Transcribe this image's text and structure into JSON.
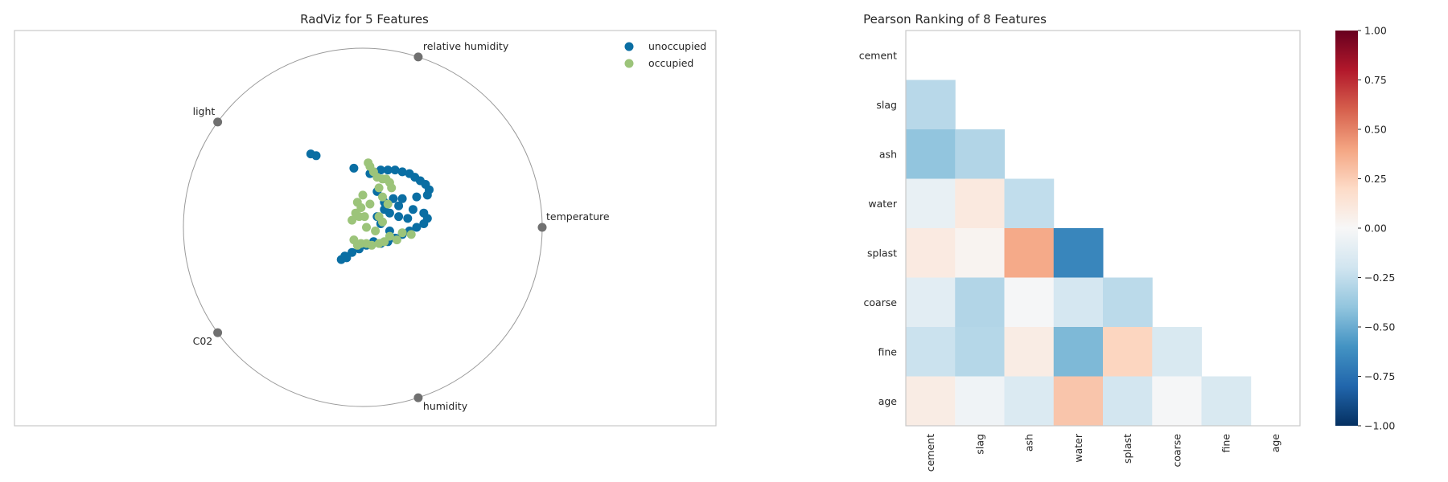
{
  "colors": {
    "unoccupied": "#0a6ea3",
    "occupied": "#9cc47a",
    "anchor": "#707070",
    "frame": "#c8c8c8"
  },
  "chart_data": [
    {
      "type": "scatter",
      "chart_kind": "radviz",
      "title": "RadViz for 5 Features",
      "features": [
        "temperature",
        "relative humidity",
        "light",
        "C02",
        "humidity"
      ],
      "legend": [
        "unoccupied",
        "occupied"
      ],
      "legend_position": "top-right",
      "radius": 1.0,
      "series": [
        {
          "name": "unoccupied",
          "points": [
            [
              -0.29,
              0.41
            ],
            [
              -0.26,
              0.4
            ],
            [
              -0.05,
              0.33
            ],
            [
              0.04,
              0.3
            ],
            [
              0.06,
              0.31
            ],
            [
              0.1,
              0.32
            ],
            [
              0.14,
              0.32
            ],
            [
              0.18,
              0.32
            ],
            [
              0.22,
              0.31
            ],
            [
              0.26,
              0.3
            ],
            [
              0.29,
              0.28
            ],
            [
              0.32,
              0.26
            ],
            [
              0.35,
              0.24
            ],
            [
              0.37,
              0.21
            ],
            [
              0.36,
              0.18
            ],
            [
              0.3,
              0.17
            ],
            [
              0.22,
              0.16
            ],
            [
              0.17,
              0.16
            ],
            [
              0.12,
              0.14
            ],
            [
              0.08,
              0.2
            ],
            [
              0.2,
              0.12
            ],
            [
              0.28,
              0.1
            ],
            [
              0.34,
              0.08
            ],
            [
              0.36,
              0.05
            ],
            [
              0.34,
              0.02
            ],
            [
              0.3,
              0.0
            ],
            [
              0.26,
              -0.02
            ],
            [
              0.22,
              -0.04
            ],
            [
              0.18,
              -0.06
            ],
            [
              0.14,
              -0.08
            ],
            [
              0.1,
              -0.09
            ],
            [
              0.06,
              -0.08
            ],
            [
              0.02,
              -0.1
            ],
            [
              -0.02,
              -0.12
            ],
            [
              -0.06,
              -0.14
            ],
            [
              -0.1,
              -0.16
            ],
            [
              -0.12,
              -0.18
            ],
            [
              -0.09,
              -0.17
            ],
            [
              0.15,
              -0.02
            ],
            [
              0.1,
              0.02
            ],
            [
              0.08,
              0.06
            ],
            [
              0.15,
              0.08
            ],
            [
              0.2,
              0.06
            ],
            [
              0.25,
              0.05
            ],
            [
              0.12,
              0.1
            ]
          ]
        },
        {
          "name": "occupied",
          "points": [
            [
              0.03,
              0.36
            ],
            [
              0.04,
              0.34
            ],
            [
              0.06,
              0.31
            ],
            [
              0.08,
              0.28
            ],
            [
              0.11,
              0.27
            ],
            [
              0.13,
              0.27
            ],
            [
              0.15,
              0.25
            ],
            [
              0.16,
              0.22
            ],
            [
              -0.03,
              0.14
            ],
            [
              -0.01,
              0.11
            ],
            [
              -0.04,
              0.08
            ],
            [
              -0.02,
              0.06
            ],
            [
              -0.06,
              0.04
            ],
            [
              -0.05,
              -0.07
            ],
            [
              -0.03,
              -0.1
            ],
            [
              -0.01,
              -0.09
            ],
            [
              0.02,
              -0.09
            ],
            [
              0.05,
              -0.1
            ],
            [
              0.09,
              -0.09
            ],
            [
              0.12,
              -0.08
            ],
            [
              0.15,
              -0.05
            ],
            [
              0.19,
              -0.07
            ],
            [
              0.22,
              -0.03
            ],
            [
              0.27,
              -0.04
            ],
            [
              0.09,
              0.22
            ],
            [
              0.04,
              0.13
            ],
            [
              0.01,
              0.06
            ],
            [
              0.09,
              0.06
            ],
            [
              0.07,
              -0.02
            ],
            [
              0.02,
              0.0
            ],
            [
              0.11,
              0.03
            ],
            [
              0.0,
              0.18
            ],
            [
              0.14,
              0.13
            ],
            [
              0.11,
              0.17
            ]
          ]
        }
      ]
    },
    {
      "type": "heatmap",
      "title": "Pearson Ranking of 8 Features",
      "features": [
        "cement",
        "slag",
        "ash",
        "water",
        "splast",
        "coarse",
        "fine",
        "age"
      ],
      "values": [
        [
          null,
          null,
          null,
          null,
          null,
          null,
          null,
          null
        ],
        [
          -0.28,
          null,
          null,
          null,
          null,
          null,
          null,
          null
        ],
        [
          -0.4,
          -0.3,
          null,
          null,
          null,
          null,
          null,
          null
        ],
        [
          -0.08,
          0.1,
          -0.25,
          null,
          null,
          null,
          null,
          null
        ],
        [
          0.09,
          0.03,
          0.38,
          -0.66,
          null,
          null,
          null,
          null
        ],
        [
          -0.11,
          -0.3,
          -0.01,
          -0.18,
          -0.27,
          null,
          null,
          null
        ],
        [
          -0.22,
          -0.29,
          0.08,
          -0.45,
          0.22,
          -0.16,
          null,
          null
        ],
        [
          0.08,
          -0.04,
          -0.15,
          0.28,
          -0.19,
          -0.01,
          -0.16,
          null
        ]
      ],
      "vmin": -1.0,
      "vmax": 1.0,
      "colorbar_ticks": [
        1.0,
        0.75,
        0.5,
        0.25,
        0.0,
        -0.25,
        -0.5,
        -0.75,
        -1.0
      ],
      "colorbar_tick_labels": [
        "1.00",
        "0.75",
        "0.50",
        "0.25",
        "0.00",
        "−0.25",
        "−0.50",
        "−0.75",
        "−1.00"
      ]
    }
  ]
}
